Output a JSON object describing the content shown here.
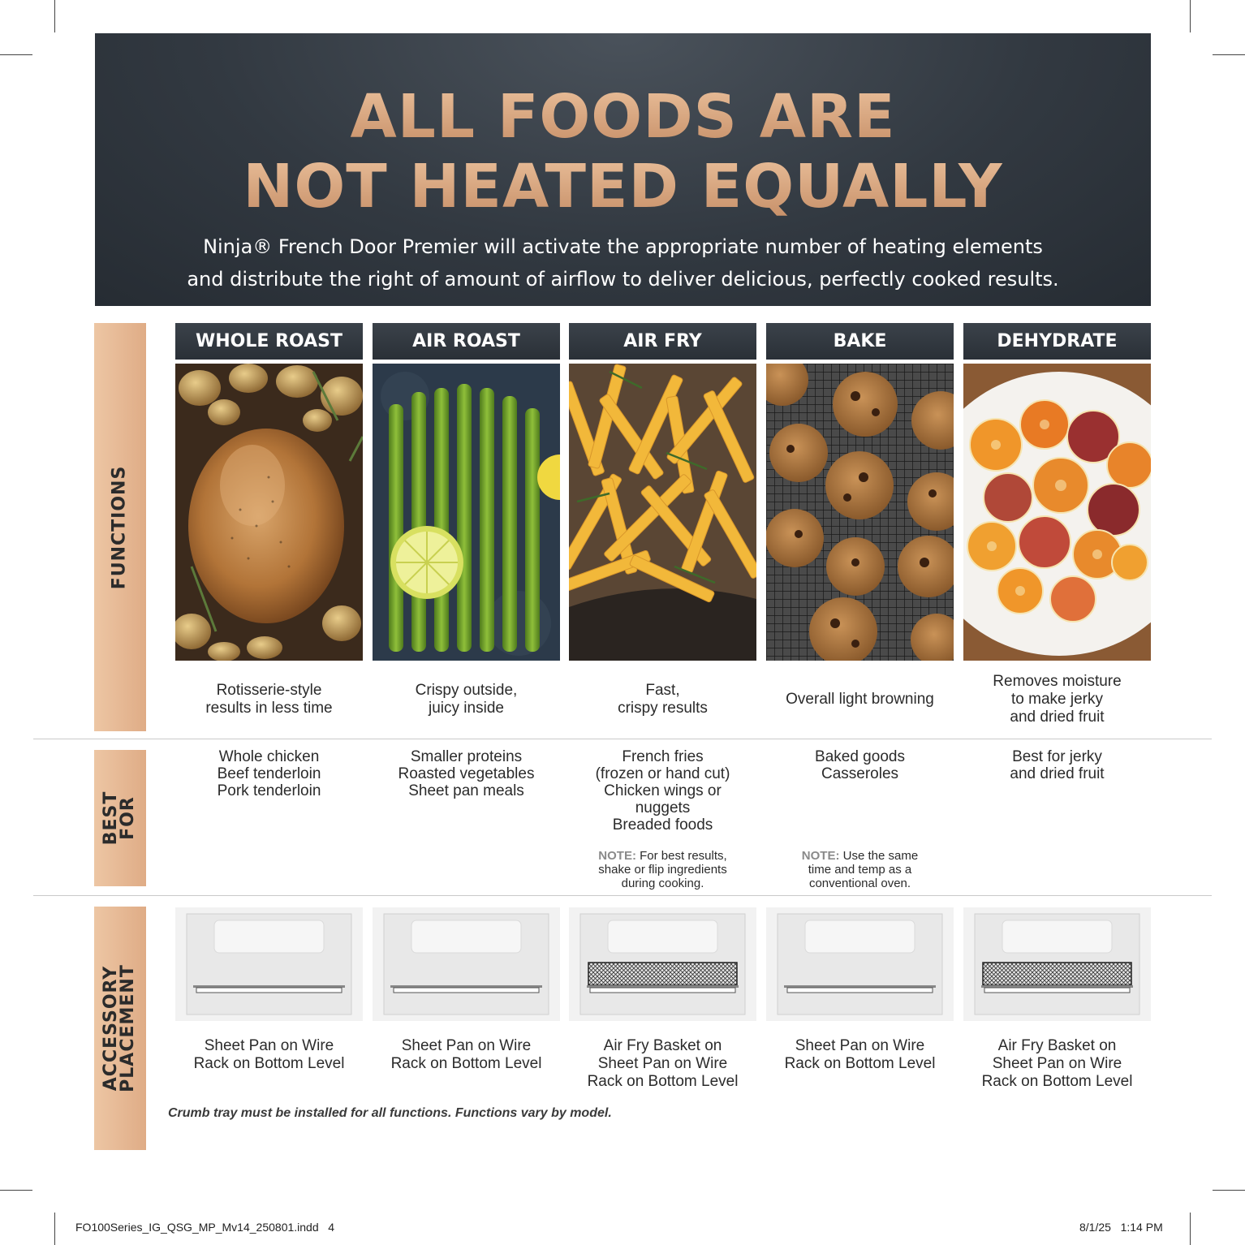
{
  "hero": {
    "title_line1": "ALL FOODS ARE",
    "title_line2": "NOT HEATED EQUALLY",
    "subtitle_line1": "Ninja® French Door Premier will activate the appropriate number of heating elements",
    "subtitle_line2": "and distribute the right of amount of airflow to deliver delicious, perfectly cooked results."
  },
  "sections": {
    "functions": "FUNCTIONS",
    "best_for_line1": "BEST",
    "best_for_line2": "FOR",
    "accessory_line1": "ACCESSORY",
    "accessory_line2": "PLACEMENT"
  },
  "columns": [
    {
      "name": "WHOLE ROAST",
      "desc": [
        "Rotisserie-style",
        "results in less time"
      ],
      "best": [
        "Whole chicken",
        "Beef tenderloin",
        "Pork tenderloin"
      ],
      "note": null,
      "placement": [
        "Sheet Pan on Wire",
        "Rack on Bottom Level"
      ],
      "accessory": "sheet-pan"
    },
    {
      "name": "AIR ROAST",
      "desc": [
        "Crispy outside,",
        "juicy inside"
      ],
      "best": [
        "Smaller proteins",
        "Roasted vegetables",
        "Sheet pan meals"
      ],
      "note": null,
      "placement": [
        "Sheet Pan on Wire",
        "Rack on Bottom Level"
      ],
      "accessory": "sheet-pan"
    },
    {
      "name": "AIR FRY",
      "desc": [
        "Fast,",
        "crispy results"
      ],
      "best": [
        "French fries",
        "(frozen or hand cut)",
        "Chicken wings or",
        "nuggets",
        "Breaded foods"
      ],
      "note": {
        "label": "NOTE:",
        "line1": "For best results,",
        "line2": "shake or flip ingredients",
        "line3": "during cooking."
      },
      "placement": [
        "Air Fry Basket on",
        "Sheet Pan on Wire",
        "Rack on Bottom Level"
      ],
      "accessory": "basket"
    },
    {
      "name": "BAKE",
      "desc": [
        "Overall light browning"
      ],
      "best": [
        "Baked goods",
        "Casseroles"
      ],
      "note": {
        "label": "NOTE:",
        "line1": "Use the same",
        "line2": "time and temp as a",
        "line3": "conventional oven."
      },
      "placement": [
        "Sheet Pan on Wire",
        "Rack on Bottom Level"
      ],
      "accessory": "sheet-pan"
    },
    {
      "name": "DEHYDRATE",
      "desc": [
        "Removes moisture",
        "to make jerky",
        "and dried fruit"
      ],
      "best": [
        "Best for jerky",
        "and dried fruit"
      ],
      "note": null,
      "placement": [
        "Air Fry Basket on",
        "Sheet Pan on Wire",
        "Rack on Bottom Level"
      ],
      "accessory": "basket"
    }
  ],
  "footnote": "Crumb tray must be installed for all functions. Functions vary by model.",
  "slug": {
    "file": "FO100Series_IG_QSG_MP_Mv14_250801.indd   4",
    "date": "8/1/25   1:14 PM"
  }
}
